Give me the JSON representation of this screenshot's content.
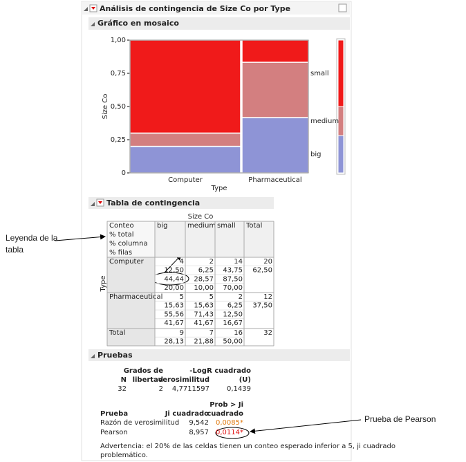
{
  "window": {
    "title": "Análisis de contingencia de Size Co por Type"
  },
  "mosaic": {
    "type": "mosaic",
    "title": "Gráfico en mosaico",
    "y_label": "Size Co",
    "x_label": "Type",
    "categories": [
      "Computer",
      "Pharmaceutical"
    ],
    "x_shares": [
      0.625,
      0.375
    ],
    "ylim": [
      0,
      1
    ],
    "yticks": [
      0,
      {
        "value": 0.25,
        "label": "0,25"
      },
      {
        "value": 0.5,
        "label": "0,50"
      },
      {
        "value": 0.75,
        "label": "0,75"
      },
      {
        "value": 1,
        "label": "1,00"
      }
    ],
    "series": [
      {
        "name": "big",
        "color": "#8e94d6",
        "values": [
          0.2,
          0.4167
        ],
        "overall": 0.2813
      },
      {
        "name": "medium",
        "color": "#d37f80",
        "values": [
          0.1,
          0.4167
        ],
        "overall": 0.2188
      },
      {
        "name": "small",
        "color": "#f01a1a",
        "values": [
          0.7,
          0.1667
        ],
        "overall": 0.5
      }
    ]
  },
  "table": {
    "title": "Tabla de contingencia",
    "col_header": "Size Co",
    "row_header": "Type",
    "legend": [
      "Conteo",
      "% total",
      "% columna",
      "% filas"
    ],
    "columns": [
      "big",
      "medium",
      "small",
      "Total"
    ],
    "rows": [
      {
        "label": "Computer",
        "cells": [
          [
            "4",
            "12,50",
            "44,44",
            "20,00"
          ],
          [
            "2",
            "6,25",
            "28,57",
            "10,00"
          ],
          [
            "14",
            "43,75",
            "87,50",
            "70,00"
          ],
          [
            "20",
            "62,50"
          ]
        ]
      },
      {
        "label": "Pharmaceutical",
        "cells": [
          [
            "5",
            "15,63",
            "55,56",
            "41,67"
          ],
          [
            "5",
            "15,63",
            "71,43",
            "41,67"
          ],
          [
            "2",
            "6,25",
            "12,50",
            "16,67"
          ],
          [
            "12",
            "37,50"
          ]
        ]
      },
      {
        "label": "Total",
        "cells": [
          [
            "9",
            "28,13"
          ],
          [
            "7",
            "21,88"
          ],
          [
            "16",
            "50,00"
          ],
          [
            "32"
          ]
        ]
      }
    ]
  },
  "tests": {
    "title": "Pruebas",
    "summary_headers": [
      [
        "N"
      ],
      [
        "Grados de",
        "libertad"
      ],
      [
        "-Log-",
        "verosimilitud"
      ],
      [
        "R cuadrado",
        "(U)"
      ]
    ],
    "summary_values": [
      "32",
      "2",
      "4,7711597",
      "0,1439"
    ],
    "test_headers": [
      [
        "Prueba"
      ],
      [
        "Ji cuadrado"
      ],
      [
        "Prob > Ji",
        "cuadrado"
      ]
    ],
    "test_rows": [
      [
        "Razón de verosimilitud",
        "9,542",
        "0,0085*"
      ],
      [
        "Pearson",
        "8,957",
        "0,0114*"
      ]
    ],
    "warning": [
      "Advertencia: el 20% de las celdas tienen un conteo esperado inferior a 5, ji cuadrado",
      "problemático."
    ]
  },
  "annotations": {
    "table_legend": [
      "Leyenda de la",
      "tabla"
    ],
    "pearson": "Prueba de Pearson"
  }
}
